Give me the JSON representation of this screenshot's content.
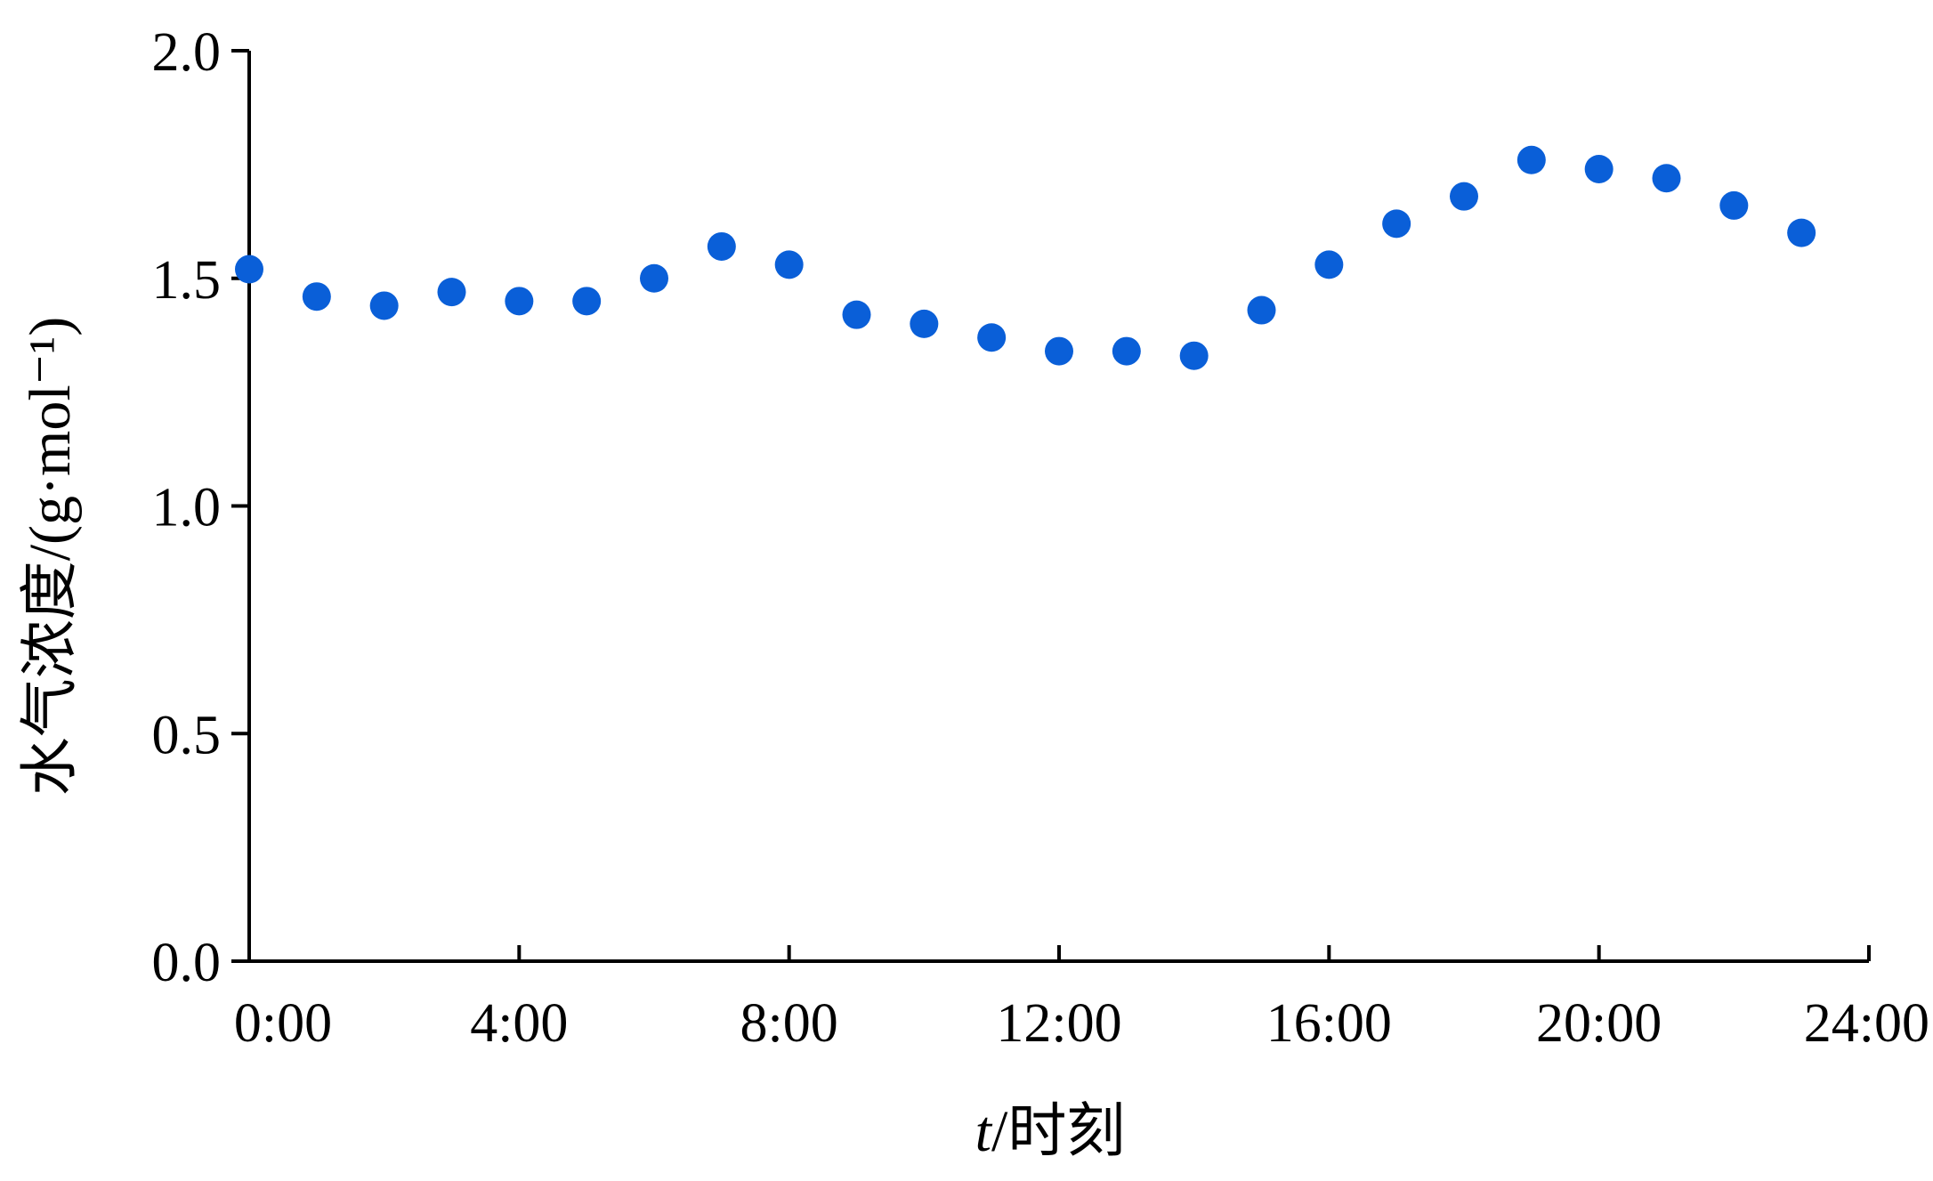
{
  "chart_data": {
    "type": "scatter",
    "title": "",
    "xlabel_italic": "t",
    "xlabel_rest": "/时刻",
    "ylabel": "水气浓度/(g·mol⁻¹)",
    "x_ticks": [
      "0:00",
      "4:00",
      "8:00",
      "12:00",
      "16:00",
      "20:00",
      "24:00"
    ],
    "y_ticks": [
      "0.0",
      "0.5",
      "1.0",
      "1.5",
      "2.0"
    ],
    "xlim": [
      0,
      24
    ],
    "ylim": [
      0,
      2.0
    ],
    "grid": false,
    "legend": "none",
    "marker_color": "#0a5fd8",
    "series": [
      {
        "x": [
          0,
          1,
          2,
          3,
          4,
          5,
          6,
          7,
          8,
          9,
          10,
          11,
          12,
          13,
          14,
          15,
          16,
          17,
          18,
          19,
          20,
          21,
          22,
          23
        ],
        "y": [
          1.52,
          1.46,
          1.44,
          1.47,
          1.45,
          1.45,
          1.5,
          1.57,
          1.53,
          1.42,
          1.4,
          1.37,
          1.34,
          1.34,
          1.33,
          1.43,
          1.53,
          1.62,
          1.68,
          1.76,
          1.74,
          1.72,
          1.66,
          1.6
        ]
      }
    ]
  }
}
